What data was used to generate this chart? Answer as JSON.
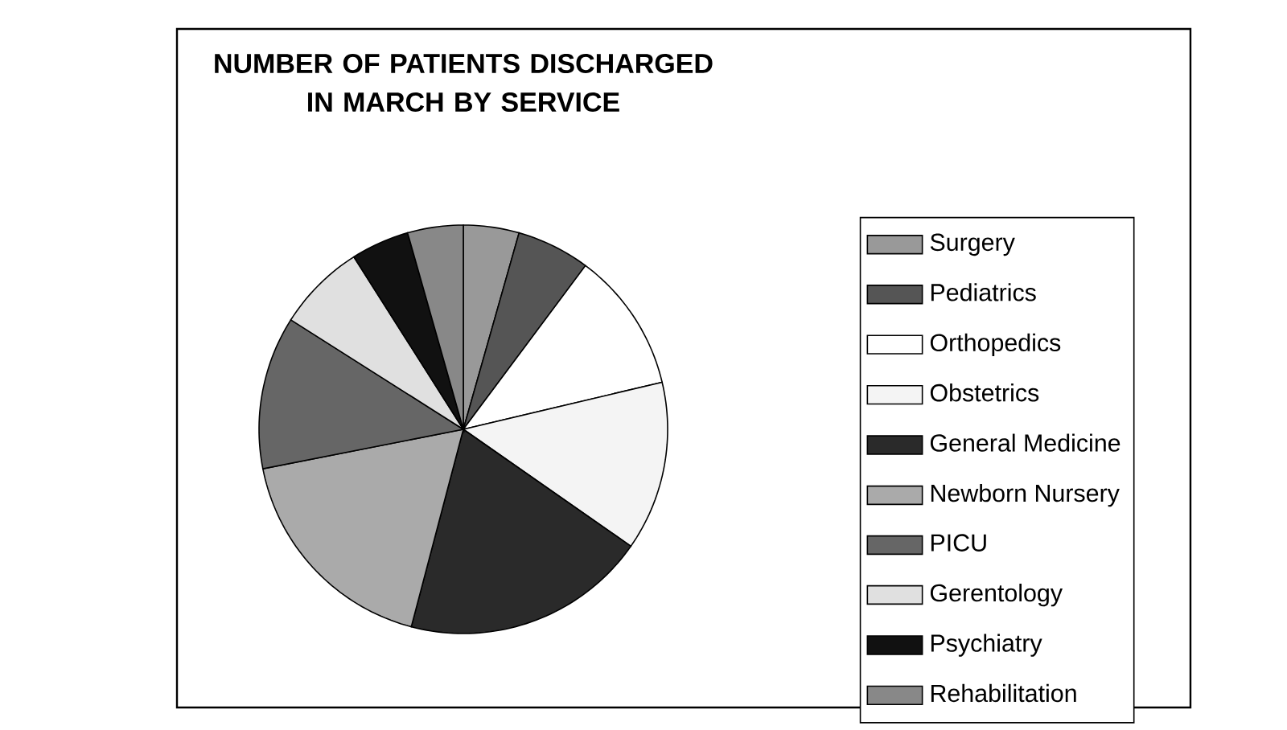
{
  "chart_data": {
    "type": "pie",
    "title": "NUMBER OF PATIENTS DISCHARGED IN MARCH BY SERVICE",
    "categories": [
      "Surgery",
      "Pediatrics",
      "Orthopedics",
      "Obstetrics",
      "General Medicine",
      "Newborn Nursery",
      "PICU",
      "Gerentology",
      "Psychiatry",
      "Rehabilitation"
    ],
    "values": [
      4.4,
      5.8,
      11.1,
      13.4,
      19.4,
      17.8,
      12.1,
      7.0,
      4.6,
      4.4
    ],
    "colors": [
      "#999999",
      "#555555",
      "#ffffff",
      "#f4f4f4",
      "#2a2a2a",
      "#aaaaaa",
      "#666666",
      "#e0e0e0",
      "#111111",
      "#888888"
    ],
    "legend": "right"
  }
}
